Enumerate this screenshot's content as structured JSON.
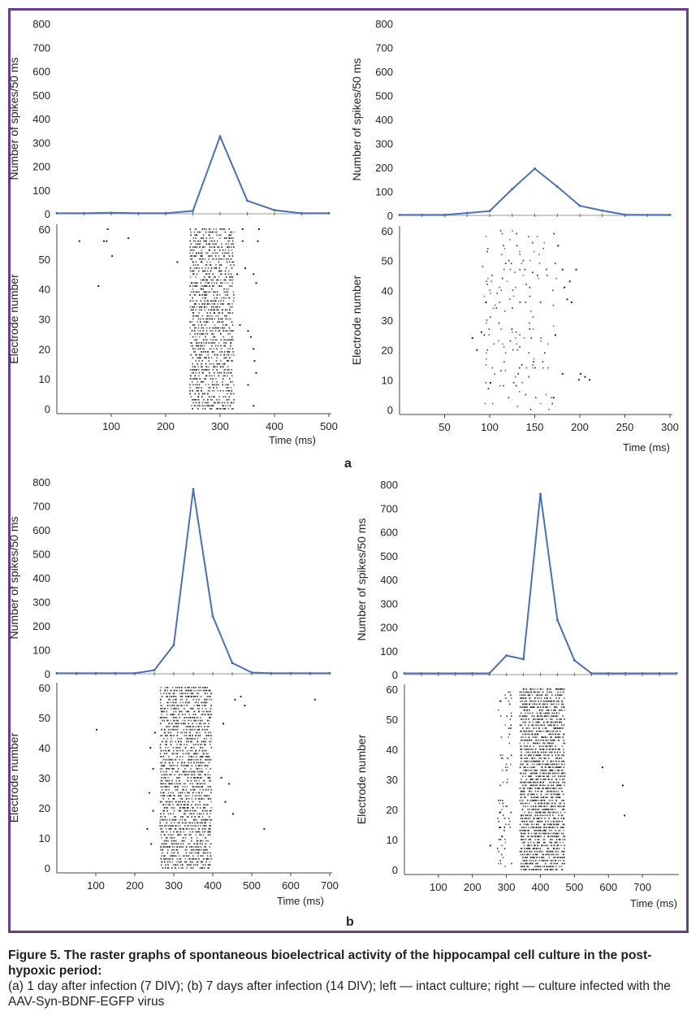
{
  "figure": {
    "caption_title": "Figure 5. The raster graphs of spontaneous bioelectrical activity of the hippocampal cell culture in the post-hypoxic period:",
    "caption_text": "(a) 1 day after infection (7 DIV); (b) 7 days after infection (14 DIV); left — intact culture; right — culture infected with the AAV-Syn-BDNF-EGFP virus",
    "panel_a_label": "a",
    "panel_b_label": "b",
    "colors": {
      "frame": "#6a3d8a",
      "line": "#4a6fb5",
      "dots": "#222222"
    }
  },
  "chart_data": [
    {
      "panel": "a",
      "position": "left",
      "type": "line",
      "ylabel": "Number of spikes/50 ms",
      "ylim": [
        0,
        800
      ],
      "yticks": [
        0,
        100,
        200,
        300,
        400,
        500,
        600,
        700,
        800
      ],
      "x": [
        0,
        50,
        100,
        150,
        200,
        250,
        300,
        350,
        400,
        450,
        500
      ],
      "values": [
        2,
        2,
        4,
        2,
        2,
        12,
        325,
        55,
        15,
        2,
        2
      ],
      "raster": {
        "type": "scatter",
        "xlabel": "Time (ms)",
        "ylabel": "Electrode number",
        "xlim": [
          0,
          500
        ],
        "xticks": [
          100,
          200,
          300,
          400,
          500
        ],
        "ylim": [
          0,
          63
        ],
        "yticks": [
          0,
          10,
          20,
          30,
          40,
          50,
          60
        ],
        "bands": [
          [
            245,
            325,
            0,
            60,
            0.55,
            3
          ]
        ],
        "points": [
          [
            40,
            56
          ],
          [
            75,
            41
          ],
          [
            85,
            56
          ],
          [
            90,
            56
          ],
          [
            92,
            60
          ],
          [
            100,
            51
          ],
          [
            130,
            57
          ],
          [
            220,
            49
          ],
          [
            340,
            60
          ],
          [
            340,
            56
          ],
          [
            370,
            60
          ],
          [
            368,
            56
          ],
          [
            330,
            45
          ],
          [
            345,
            47
          ],
          [
            360,
            45
          ],
          [
            365,
            42
          ],
          [
            335,
            28
          ],
          [
            350,
            26
          ],
          [
            355,
            24
          ],
          [
            360,
            20
          ],
          [
            362,
            16
          ],
          [
            365,
            12
          ],
          [
            350,
            8
          ],
          [
            360,
            1
          ]
        ]
      }
    },
    {
      "panel": "a",
      "position": "right",
      "type": "line",
      "ylabel": "Number of spikes/50 ms",
      "ylim": [
        0,
        800
      ],
      "yticks": [
        0,
        100,
        200,
        300,
        400,
        500,
        600,
        700,
        800
      ],
      "x": [
        0,
        25,
        50,
        75,
        100,
        125,
        150,
        175,
        200,
        225,
        250,
        275,
        300
      ],
      "values": [
        2,
        2,
        2,
        10,
        18,
        110,
        195,
        120,
        40,
        20,
        3,
        2,
        2
      ],
      "raster": {
        "type": "scatter",
        "xlabel": "Time (ms)",
        "ylabel": "Electrode number",
        "xlim": [
          0,
          300
        ],
        "xticks": [
          50,
          100,
          150,
          200,
          250,
          300
        ],
        "ylim": [
          0,
          63
        ],
        "yticks": [
          0,
          10,
          20,
          30,
          40,
          50,
          60
        ],
        "bands": [
          [
            95,
            175,
            0,
            60,
            0.2,
            7
          ]
        ],
        "points": [
          [
            80,
            24
          ],
          [
            85,
            20
          ],
          [
            90,
            26
          ],
          [
            95,
            36
          ],
          [
            100,
            9
          ],
          [
            175,
            55
          ],
          [
            180,
            47
          ],
          [
            182,
            41
          ],
          [
            185,
            37
          ],
          [
            188,
            43
          ],
          [
            190,
            36
          ],
          [
            195,
            47
          ],
          [
            180,
            12
          ],
          [
            198,
            10
          ],
          [
            200,
            12
          ],
          [
            205,
            11
          ],
          [
            210,
            10
          ],
          [
            172,
            25
          ],
          [
            170,
            4
          ]
        ]
      }
    },
    {
      "panel": "b",
      "position": "left",
      "type": "line",
      "ylabel": "Number of spikes/50 ms",
      "ylim": [
        0,
        800
      ],
      "yticks": [
        0,
        100,
        200,
        300,
        400,
        500,
        600,
        700,
        800
      ],
      "x": [
        0,
        50,
        100,
        150,
        200,
        250,
        300,
        350,
        400,
        450,
        500,
        550,
        600,
        650,
        700
      ],
      "values": [
        2,
        2,
        2,
        2,
        2,
        15,
        120,
        770,
        240,
        45,
        5,
        2,
        2,
        2,
        2
      ],
      "raster": {
        "type": "scatter",
        "xlabel": "Time (ms)",
        "ylabel": "Electrode number",
        "xlim": [
          0,
          700
        ],
        "xticks": [
          100,
          200,
          300,
          400,
          500,
          600,
          700
        ],
        "ylim": [
          0,
          63
        ],
        "yticks": [
          0,
          10,
          20,
          30,
          40,
          50,
          60
        ],
        "bands": [
          [
            265,
            395,
            0,
            60,
            0.6,
            4
          ]
        ],
        "points": [
          [
            100,
            46
          ],
          [
            230,
            13
          ],
          [
            235,
            25
          ],
          [
            238,
            40
          ],
          [
            240,
            8
          ],
          [
            245,
            33
          ],
          [
            245,
            19
          ],
          [
            250,
            45
          ],
          [
            420,
            30
          ],
          [
            425,
            48
          ],
          [
            430,
            22
          ],
          [
            440,
            28
          ],
          [
            450,
            18
          ],
          [
            455,
            56
          ],
          [
            470,
            57
          ],
          [
            480,
            54
          ],
          [
            530,
            13
          ],
          [
            660,
            56
          ]
        ]
      }
    },
    {
      "panel": "b",
      "position": "right",
      "type": "line",
      "ylabel": "Number of spikes/50 ms",
      "ylim": [
        0,
        800
      ],
      "yticks": [
        0,
        100,
        200,
        300,
        400,
        500,
        600,
        700,
        800
      ],
      "x": [
        0,
        50,
        100,
        150,
        200,
        250,
        300,
        350,
        400,
        450,
        500,
        550,
        600,
        650,
        700,
        750,
        800
      ],
      "values": [
        5,
        5,
        5,
        5,
        5,
        5,
        80,
        65,
        760,
        230,
        60,
        5,
        5,
        5,
        5,
        5,
        5
      ],
      "raster": {
        "type": "scatter",
        "xlabel": "Time (ms)",
        "ylabel": "Electrode number",
        "xlim": [
          0,
          800
        ],
        "xticks": [
          100,
          200,
          300,
          400,
          500,
          600,
          700
        ],
        "ylim": [
          0,
          63
        ],
        "yticks": [
          0,
          10,
          20,
          30,
          40,
          50,
          60
        ],
        "bands": [
          [
            340,
            470,
            0,
            60,
            0.65,
            4
          ],
          [
            275,
            310,
            0,
            60,
            0.18,
            7
          ]
        ],
        "points": [
          [
            250,
            8
          ],
          [
            580,
            34
          ],
          [
            640,
            28
          ],
          [
            645,
            18
          ]
        ]
      }
    }
  ]
}
